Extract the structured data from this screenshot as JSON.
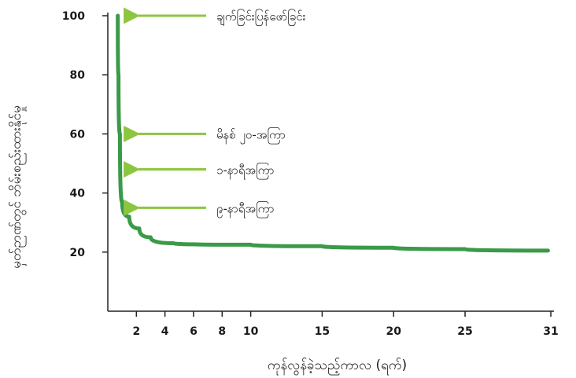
{
  "chart_data": {
    "type": "line",
    "xlabel": "ကုန်လွန်ခဲ့သည့်ကာလ (ရက်)",
    "ylabel": "မှတ်ဉာဏ်တွင် ဘိမ်းစည်းထားနိုင်မှု",
    "xlim": [
      0,
      31
    ],
    "ylim": [
      0,
      100
    ],
    "x_ticks": [
      2,
      4,
      6,
      8,
      10,
      15,
      20,
      25,
      31
    ],
    "y_ticks": [
      20,
      40,
      60,
      80,
      100
    ],
    "grid": false,
    "series": [
      {
        "color": "#3a9a48",
        "x": [
          0.7,
          0.75,
          0.85,
          1.0,
          1.5,
          2.2,
          3.0,
          4.6,
          10,
          15,
          20,
          25,
          30.8
        ],
        "y": [
          100,
          80,
          60,
          37,
          32,
          28,
          25,
          23,
          22.5,
          22,
          21.5,
          21,
          20.5
        ]
      }
    ],
    "annotations": [
      {
        "label": "ချက်ခြင်းပြန်ဖော်ခြင်း",
        "y": 100
      },
      {
        "label": "မိနစ် ၂၀-အကြာ",
        "y": 60
      },
      {
        "label": "၁-နာရီအကြာ",
        "y": 48
      },
      {
        "label": "၉-နာရီအကြာ",
        "y": 35
      }
    ],
    "annotation_color": "#8cc63f"
  }
}
